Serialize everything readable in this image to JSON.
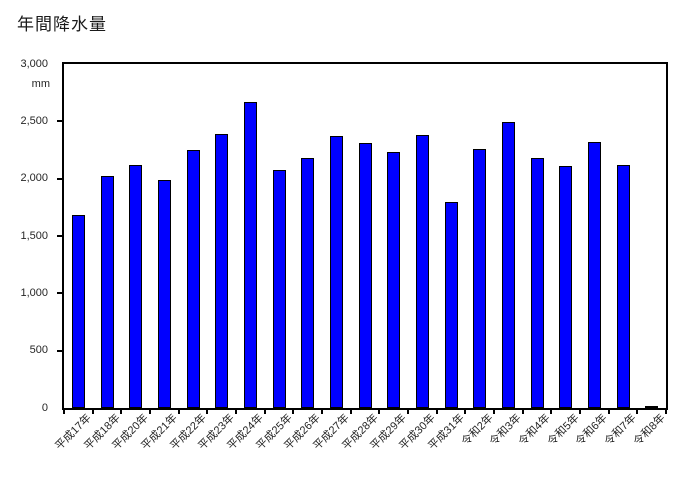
{
  "title": "年間降水量",
  "y_axis": {
    "unit": "mm",
    "tick_labels": [
      "3,000",
      "2,500",
      "2,000",
      "1,500",
      "1,000",
      "500",
      "0"
    ]
  },
  "chart_data": {
    "type": "bar",
    "title": "年間降水量",
    "xlabel": "",
    "ylabel": "mm",
    "ylim": [
      0,
      3000
    ],
    "ytick_interval": 500,
    "grid": false,
    "legend": "none",
    "bar_color": "#0000FF",
    "bar_border_color": "#000000",
    "categories": [
      "平成17年",
      "平成18年",
      "平成20年",
      "平成21年",
      "平成22年",
      "平成23年",
      "平成24年",
      "平成25年",
      "平成26年",
      "平成27年",
      "平成28年",
      "平成29年",
      "平成30年",
      "平成31年",
      "令和2年",
      "令和3年",
      "令和4年",
      "令和5年",
      "令和6年",
      "令和7年",
      "令和8年"
    ],
    "values": [
      1680,
      2020,
      2120,
      1990,
      2250,
      2390,
      2670,
      2080,
      2180,
      2370,
      2310,
      2230,
      2380,
      1800,
      2260,
      2490,
      2180,
      2110,
      2320,
      2120,
      20
    ]
  }
}
